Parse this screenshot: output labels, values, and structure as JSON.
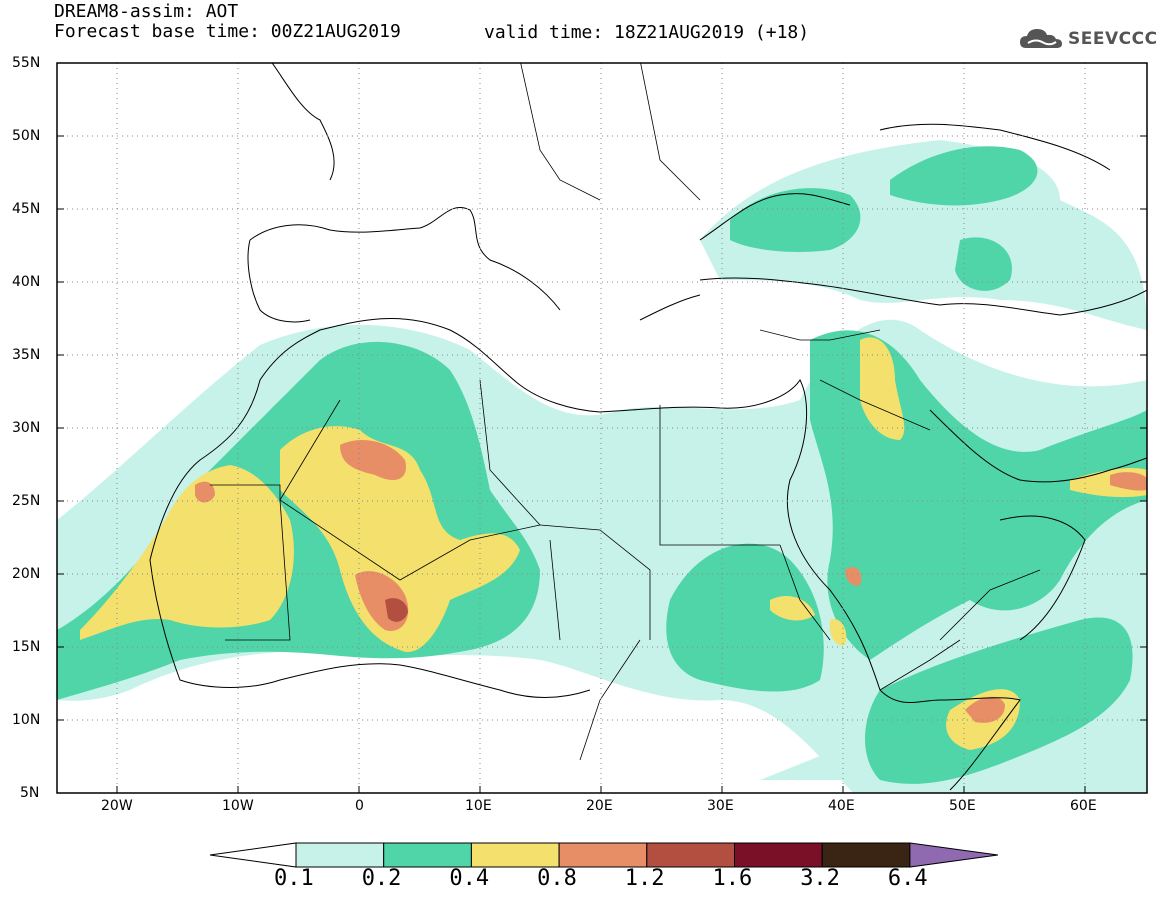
{
  "header": {
    "title": "DREAM8-assim: AOT",
    "base_time": "Forecast base time: 00Z21AUG2019",
    "valid_time": "valid time: 18Z21AUG2019 (+18)"
  },
  "logo": {
    "text": "SEEVCCC",
    "icon": "cloud-icon"
  },
  "map": {
    "lon_range": [
      -25,
      65
    ],
    "lat_range": [
      5,
      55
    ],
    "lat_ticks": [
      "55N",
      "50N",
      "45N",
      "40N",
      "35N",
      "30N",
      "25N",
      "20N",
      "15N",
      "10N",
      "5N"
    ],
    "lon_ticks": [
      "20W",
      "10W",
      "0",
      "10E",
      "20E",
      "30E",
      "40E",
      "50E",
      "60E"
    ],
    "grid": "dotted"
  },
  "colorbar": {
    "labels": [
      "0.1",
      "0.2",
      "0.4",
      "0.8",
      "1.2",
      "1.6",
      "3.2",
      "6.4"
    ],
    "colors": [
      "#c6f2ea",
      "#4fd5a8",
      "#f4e06c",
      "#e88e66",
      "#b24f40",
      "#7a1028",
      "#3a2414",
      "#8f6ab0"
    ]
  }
}
